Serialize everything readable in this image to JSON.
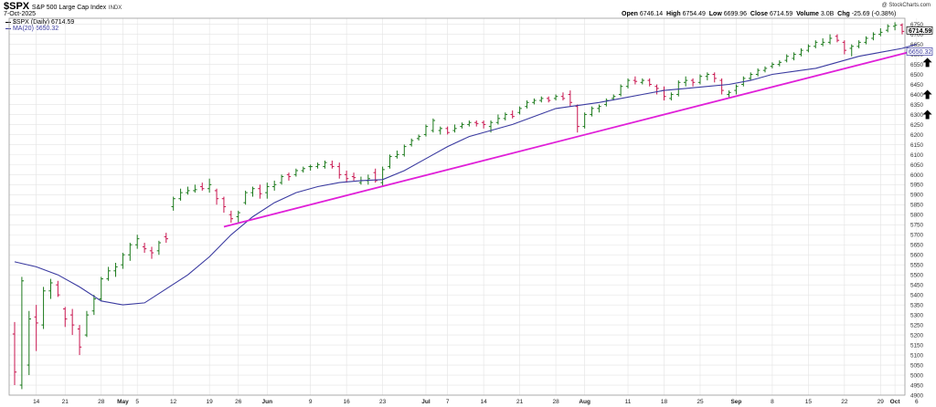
{
  "header": {
    "ticker": "$SPX",
    "name": "S&P 500 Large Cap Index",
    "exchange": "INDX",
    "date": "7-Oct-2025",
    "credit": "@ StockCharts.com",
    "legend_price": "$SPX (Daily) 6714.59",
    "legend_ma": "MA(20) 6650.32",
    "open_label": "Open",
    "open": "6746.14",
    "high_label": "High",
    "high": "6754.49",
    "low_label": "Low",
    "low": "6699.96",
    "close_label": "Close",
    "close": "6714.59",
    "volume_label": "Volume",
    "volume": "3.0B",
    "chg_label": "Chg",
    "chg": "-25.69 (-0.38%)",
    "last_price_tag": "6714.59",
    "ma_price_tag": "6650.32"
  },
  "colors": {
    "up": "#1c7a1c",
    "down": "#c8154f",
    "ma": "#3a3aa0",
    "trendline": "#e020d8",
    "grid": "#e4e4e4",
    "arrow": "#000000"
  },
  "chart_data": {
    "type": "ohlc",
    "series_price_name": "$SPX (Daily)",
    "series_ma_name": "MA(20)",
    "ylim": [
      4900,
      6780
    ],
    "y_ticks": [
      4900,
      4950,
      5000,
      5050,
      5100,
      5150,
      5200,
      5250,
      5300,
      5350,
      5400,
      5450,
      5500,
      5550,
      5600,
      5650,
      5700,
      5750,
      5800,
      5850,
      5900,
      5950,
      6000,
      6050,
      6100,
      6150,
      6200,
      6250,
      6300,
      6350,
      6400,
      6450,
      6500,
      6550,
      6600,
      6650,
      6700,
      6750
    ],
    "x_ticks": [
      {
        "label": "14",
        "index": 3
      },
      {
        "label": "21",
        "index": 7
      },
      {
        "label": "28",
        "index": 12
      },
      {
        "label": "May",
        "index": 15,
        "bold": true
      },
      {
        "label": "5",
        "index": 17
      },
      {
        "label": "12",
        "index": 22
      },
      {
        "label": "19",
        "index": 27
      },
      {
        "label": "26",
        "index": 31
      },
      {
        "label": "Jun",
        "index": 35,
        "bold": true
      },
      {
        "label": "9",
        "index": 41
      },
      {
        "label": "16",
        "index": 46
      },
      {
        "label": "23",
        "index": 51
      },
      {
        "label": "Jul",
        "index": 57,
        "bold": true
      },
      {
        "label": "7",
        "index": 60
      },
      {
        "label": "14",
        "index": 65
      },
      {
        "label": "21",
        "index": 70
      },
      {
        "label": "28",
        "index": 75
      },
      {
        "label": "Aug",
        "index": 79,
        "bold": true
      },
      {
        "label": "11",
        "index": 85
      },
      {
        "label": "18",
        "index": 90
      },
      {
        "label": "25",
        "index": 95
      },
      {
        "label": "Sep",
        "index": 100,
        "bold": true
      },
      {
        "label": "8",
        "index": 105
      },
      {
        "label": "15",
        "index": 110
      },
      {
        "label": "22",
        "index": 115
      },
      {
        "label": "29",
        "index": 120
      },
      {
        "label": "Oct",
        "index": 122,
        "bold": true
      },
      {
        "label": "6",
        "index": 125
      }
    ],
    "bars": [
      [
        5205,
        5015,
        4950,
        5265
      ],
      [
        4950,
        5470,
        4930,
        5490
      ],
      [
        5050,
        5280,
        5000,
        5320
      ],
      [
        5290,
        5260,
        5120,
        5350
      ],
      [
        5250,
        5420,
        5230,
        5440
      ],
      [
        5420,
        5460,
        5380,
        5480
      ],
      [
        5450,
        5400,
        5390,
        5470
      ],
      [
        5330,
        5280,
        5240,
        5340
      ],
      [
        5300,
        5250,
        5200,
        5330
      ],
      [
        5230,
        5140,
        5100,
        5250
      ],
      [
        5200,
        5300,
        5190,
        5320
      ],
      [
        5320,
        5380,
        5300,
        5400
      ],
      [
        5380,
        5480,
        5370,
        5490
      ],
      [
        5480,
        5520,
        5470,
        5540
      ],
      [
        5520,
        5540,
        5490,
        5560
      ],
      [
        5550,
        5600,
        5530,
        5610
      ],
      [
        5600,
        5650,
        5570,
        5660
      ],
      [
        5650,
        5680,
        5630,
        5700
      ],
      [
        5640,
        5630,
        5610,
        5660
      ],
      [
        5620,
        5610,
        5580,
        5640
      ],
      [
        5620,
        5660,
        5600,
        5670
      ],
      [
        5690,
        5680,
        5660,
        5710
      ],
      [
        5840,
        5880,
        5820,
        5890
      ],
      [
        5880,
        5910,
        5870,
        5930
      ],
      [
        5910,
        5920,
        5900,
        5940
      ],
      [
        5920,
        5925,
        5910,
        5950
      ],
      [
        5940,
        5930,
        5920,
        5960
      ],
      [
        5930,
        5950,
        5910,
        5980
      ],
      [
        5920,
        5880,
        5850,
        5930
      ],
      [
        5880,
        5840,
        5810,
        5890
      ],
      [
        5800,
        5780,
        5760,
        5820
      ],
      [
        5790,
        5810,
        5760,
        5820
      ],
      [
        5860,
        5910,
        5850,
        5920
      ],
      [
        5910,
        5930,
        5890,
        5940
      ],
      [
        5930,
        5905,
        5880,
        5950
      ],
      [
        5910,
        5940,
        5880,
        5960
      ],
      [
        5940,
        5950,
        5920,
        5970
      ],
      [
        5960,
        5990,
        5950,
        6000
      ],
      [
        6000,
        5990,
        5970,
        6010
      ],
      [
        6000,
        6020,
        5990,
        6030
      ],
      [
        6020,
        6030,
        6010,
        6040
      ],
      [
        6040,
        6040,
        6020,
        6050
      ],
      [
        6040,
        6050,
        6030,
        6060
      ],
      [
        6040,
        6060,
        6030,
        6070
      ],
      [
        6050,
        6040,
        6030,
        6070
      ],
      [
        6040,
        6000,
        5980,
        6060
      ],
      [
        6000,
        5980,
        5960,
        6020
      ],
      [
        5990,
        5985,
        5970,
        6010
      ],
      [
        5960,
        5970,
        5950,
        5990
      ],
      [
        5970,
        5980,
        5950,
        6000
      ],
      [
        6010,
        5970,
        5960,
        6030
      ],
      [
        5960,
        6025,
        5940,
        6040
      ],
      [
        6040,
        6090,
        6030,
        6100
      ],
      [
        6090,
        6100,
        6080,
        6120
      ],
      [
        6100,
        6140,
        6090,
        6150
      ],
      [
        6150,
        6170,
        6140,
        6180
      ],
      [
        6180,
        6190,
        6170,
        6200
      ],
      [
        6200,
        6240,
        6190,
        6250
      ],
      [
        6220,
        6270,
        6210,
        6280
      ],
      [
        6220,
        6230,
        6200,
        6240
      ],
      [
        6230,
        6210,
        6200,
        6240
      ],
      [
        6220,
        6230,
        6210,
        6250
      ],
      [
        6240,
        6250,
        6230,
        6260
      ],
      [
        6250,
        6260,
        6240,
        6270
      ],
      [
        6260,
        6255,
        6240,
        6270
      ],
      [
        6260,
        6250,
        6230,
        6270
      ],
      [
        6240,
        6260,
        6210,
        6270
      ],
      [
        6260,
        6280,
        6250,
        6300
      ],
      [
        6280,
        6300,
        6270,
        6310
      ],
      [
        6300,
        6290,
        6280,
        6320
      ],
      [
        6310,
        6330,
        6300,
        6340
      ],
      [
        6340,
        6360,
        6330,
        6370
      ],
      [
        6360,
        6370,
        6350,
        6380
      ],
      [
        6370,
        6380,
        6360,
        6390
      ],
      [
        6380,
        6370,
        6360,
        6390
      ],
      [
        6380,
        6390,
        6370,
        6400
      ],
      [
        6390,
        6380,
        6370,
        6410
      ],
      [
        6400,
        6360,
        6340,
        6420
      ],
      [
        6340,
        6240,
        6210,
        6350
      ],
      [
        6240,
        6300,
        6230,
        6310
      ],
      [
        6300,
        6330,
        6290,
        6340
      ],
      [
        6330,
        6340,
        6310,
        6350
      ],
      [
        6350,
        6370,
        6340,
        6380
      ],
      [
        6380,
        6390,
        6370,
        6400
      ],
      [
        6400,
        6440,
        6390,
        6450
      ],
      [
        6440,
        6470,
        6430,
        6480
      ],
      [
        6470,
        6465,
        6450,
        6490
      ],
      [
        6460,
        6470,
        6450,
        6480
      ],
      [
        6470,
        6450,
        6440,
        6480
      ],
      [
        6440,
        6430,
        6400,
        6450
      ],
      [
        6420,
        6390,
        6370,
        6440
      ],
      [
        6380,
        6400,
        6370,
        6410
      ],
      [
        6400,
        6460,
        6390,
        6470
      ],
      [
        6460,
        6470,
        6440,
        6490
      ],
      [
        6470,
        6460,
        6440,
        6480
      ],
      [
        6460,
        6490,
        6450,
        6500
      ],
      [
        6490,
        6500,
        6470,
        6510
      ],
      [
        6500,
        6480,
        6460,
        6510
      ],
      [
        6470,
        6420,
        6400,
        6480
      ],
      [
        6400,
        6410,
        6380,
        6420
      ],
      [
        6420,
        6440,
        6400,
        6450
      ],
      [
        6450,
        6480,
        6440,
        6490
      ],
      [
        6480,
        6500,
        6470,
        6510
      ],
      [
        6500,
        6520,
        6490,
        6530
      ],
      [
        6520,
        6530,
        6510,
        6540
      ],
      [
        6540,
        6550,
        6530,
        6560
      ],
      [
        6550,
        6560,
        6540,
        6570
      ],
      [
        6570,
        6590,
        6560,
        6600
      ],
      [
        6580,
        6600,
        6570,
        6610
      ],
      [
        6600,
        6620,
        6590,
        6630
      ],
      [
        6620,
        6640,
        6610,
        6650
      ],
      [
        6640,
        6660,
        6630,
        6670
      ],
      [
        6650,
        6660,
        6640,
        6680
      ],
      [
        6660,
        6680,
        6650,
        6700
      ],
      [
        6690,
        6670,
        6660,
        6700
      ],
      [
        6660,
        6620,
        6600,
        6670
      ],
      [
        6630,
        6640,
        6590,
        6650
      ],
      [
        6640,
        6660,
        6630,
        6670
      ],
      [
        6660,
        6680,
        6650,
        6690
      ],
      [
        6680,
        6700,
        6670,
        6710
      ],
      [
        6700,
        6710,
        6690,
        6730
      ],
      [
        6720,
        6740,
        6710,
        6750
      ],
      [
        6740,
        6745,
        6720,
        6760
      ],
      [
        6746.14,
        6714.59,
        6699.96,
        6754.49
      ]
    ],
    "ma20": [
      [
        0,
        5565
      ],
      [
        3,
        5540
      ],
      [
        6,
        5500
      ],
      [
        9,
        5440
      ],
      [
        12,
        5370
      ],
      [
        15,
        5350
      ],
      [
        18,
        5360
      ],
      [
        21,
        5430
      ],
      [
        24,
        5500
      ],
      [
        27,
        5590
      ],
      [
        30,
        5700
      ],
      [
        33,
        5790
      ],
      [
        36,
        5860
      ],
      [
        39,
        5910
      ],
      [
        42,
        5940
      ],
      [
        45,
        5960
      ],
      [
        48,
        5970
      ],
      [
        51,
        5975
      ],
      [
        54,
        6020
      ],
      [
        57,
        6080
      ],
      [
        60,
        6140
      ],
      [
        63,
        6190
      ],
      [
        66,
        6220
      ],
      [
        69,
        6250
      ],
      [
        72,
        6290
      ],
      [
        75,
        6330
      ],
      [
        78,
        6345
      ],
      [
        81,
        6360
      ],
      [
        84,
        6380
      ],
      [
        87,
        6400
      ],
      [
        90,
        6420
      ],
      [
        93,
        6430
      ],
      [
        96,
        6440
      ],
      [
        99,
        6450
      ],
      [
        102,
        6470
      ],
      [
        105,
        6500
      ],
      [
        108,
        6515
      ],
      [
        111,
        6530
      ],
      [
        114,
        6560
      ],
      [
        117,
        6590
      ],
      [
        120,
        6610
      ],
      [
        123,
        6630
      ],
      [
        125,
        6650.32
      ]
    ],
    "trendline": {
      "from": [
        29,
        5740
      ],
      "to": [
        126,
        6630
      ]
    },
    "arrows": [
      {
        "index": 126.5,
        "value": 6560
      },
      {
        "index": 126.5,
        "value": 6400
      },
      {
        "index": 126.5,
        "value": 6300
      }
    ]
  }
}
